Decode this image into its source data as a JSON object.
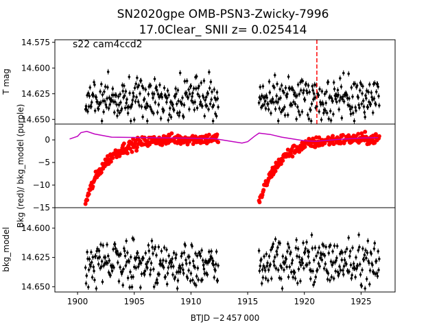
{
  "chart_data": {
    "type": "scatter",
    "title_line1": "SN2020gpe  OMB-PSN3-Zwicky-7996",
    "title_line2": "17.0Clear_ SNII z= 0.025414",
    "xlabel": "BTJD −2 457 000",
    "xlim": [
      1898.0,
      1928.0
    ],
    "xticks": [
      1900,
      1905,
      1910,
      1915,
      1920,
      1925
    ],
    "segments": [
      [
        1900.7,
        1912.4
      ],
      [
        1916.0,
        1926.6
      ]
    ],
    "marker_date": 1921.1,
    "panels": [
      {
        "ylabel": "T mag",
        "annotation": "s22 cam4ccd2",
        "ylim": [
          14.5725,
          14.6545
        ],
        "inverted": true,
        "yticks": [
          "14.575",
          "14.600",
          "14.625",
          "14.650"
        ],
        "series": [
          {
            "color": "#000000",
            "style": "points-errorbars",
            "center": 14.63,
            "scatter": 0.01
          }
        ]
      },
      {
        "ylabel": "Bkg (red)/ bkg_model (purple)",
        "ylim": [
          -15,
          3.5
        ],
        "inverted": false,
        "yticks": [
          "0",
          "−5",
          "−10",
          "−15"
        ],
        "series": [
          {
            "color": "#ff0000",
            "style": "points",
            "start_value": -14.0,
            "end_value": 0.3,
            "tau_days": 1.8
          },
          {
            "color": "#bf00bf",
            "style": "line",
            "x": [
              1899.3,
              1900.0,
              1900.3,
              1900.8,
              1901.5,
              1903.0,
              1906.0,
              1909.0,
              1912.0,
              1913.5,
              1914.5,
              1915.0,
              1915.6,
              1916.0,
              1917.0,
              1918.0,
              1919.0,
              1920.0,
              1921.0,
              1923.0,
              1925.0,
              1926.5
            ],
            "y": [
              0.2,
              0.8,
              1.6,
              1.9,
              1.3,
              0.6,
              0.5,
              0.4,
              0.3,
              -0.3,
              -0.7,
              -0.4,
              0.8,
              1.5,
              1.2,
              0.6,
              0.2,
              -0.2,
              -0.3,
              0.1,
              0.4,
              0.5
            ]
          }
        ]
      },
      {
        "ylabel": "bkg_model",
        "ylim": [
          14.5825,
          14.6545
        ],
        "inverted": true,
        "yticks": [
          "14.600",
          "14.625",
          "14.650"
        ],
        "series": [
          {
            "color": "#000000",
            "style": "points-errorbars",
            "center": 14.629,
            "scatter": 0.01
          }
        ]
      }
    ]
  }
}
